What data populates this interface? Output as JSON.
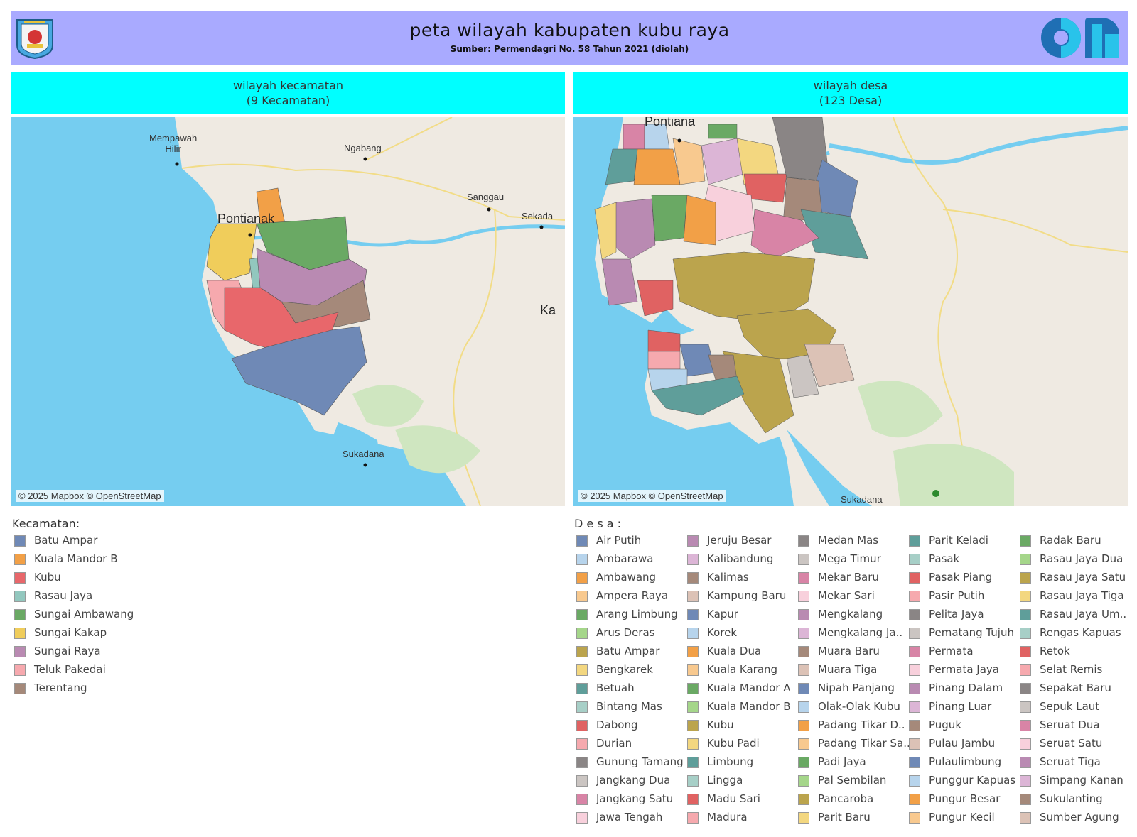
{
  "header": {
    "title": "peta wilayah kabupaten kubu raya",
    "subtitle": "Sumber: Permendagri No. 58 Tahun 2021 (diolah)"
  },
  "left_panel": {
    "title_line1": "wilayah kecamatan",
    "title_line2": "(9 Kecamatan)",
    "credit": "© 2025 Mapbox © OpenStreetMap",
    "places": [
      "Mempawah",
      "Hilir",
      "Ngabang",
      "Sanggau",
      "Sekada",
      "Pontianak",
      "Sukadana",
      "Ka"
    ]
  },
  "right_panel": {
    "title_line1": "wilayah desa",
    "title_line2": "(123 Desa)",
    "credit": "© 2025 Mapbox © OpenStreetMap",
    "places": [
      "Pontiana",
      "Sukadana"
    ]
  },
  "kecamatan_legend": {
    "title": "Kecamatan:",
    "items": [
      {
        "label": "Batu Ampar",
        "color": "#6f89b6"
      },
      {
        "label": "Kuala Mandor B",
        "color": "#f2a047"
      },
      {
        "label": "Kubu",
        "color": "#e8676b"
      },
      {
        "label": "Rasau Jaya",
        "color": "#92c7be"
      },
      {
        "label": "Sungai Ambawang",
        "color": "#6aa964"
      },
      {
        "label": "Sungai Kakap",
        "color": "#f0cd5b"
      },
      {
        "label": "Sungai Raya",
        "color": "#b98ab2"
      },
      {
        "label": "Teluk Pakedai",
        "color": "#f6a9ae"
      },
      {
        "label": "Terentang",
        "color": "#a5897a"
      }
    ]
  },
  "desa_legend": {
    "title": "D e s a :",
    "columns": [
      [
        {
          "label": "Air Putih",
          "color": "#6f89b6"
        },
        {
          "label": "Ambarawa",
          "color": "#b7d4ec"
        },
        {
          "label": "Ambawang",
          "color": "#f2a047"
        },
        {
          "label": "Ampera Raya",
          "color": "#f8c98f"
        },
        {
          "label": "Arang Limbung",
          "color": "#6aa964"
        },
        {
          "label": "Arus Deras",
          "color": "#a5d68a"
        },
        {
          "label": "Batu Ampar",
          "color": "#bba44d"
        },
        {
          "label": "Bengkarek",
          "color": "#f3d780"
        },
        {
          "label": "Betuah",
          "color": "#5f9e9a"
        },
        {
          "label": "Bintang Mas",
          "color": "#a7cfc7"
        },
        {
          "label": "Dabong",
          "color": "#e06262"
        },
        {
          "label": "Durian",
          "color": "#f6a9ae"
        },
        {
          "label": "Gunung Tamang",
          "color": "#8a8585"
        },
        {
          "label": "Jangkang Dua",
          "color": "#cbc5c2"
        },
        {
          "label": "Jangkang Satu",
          "color": "#d884a6"
        },
        {
          "label": "Jawa Tengah",
          "color": "#f8d0dc"
        }
      ],
      [
        {
          "label": "Jeruju Besar",
          "color": "#b98ab2"
        },
        {
          "label": "Kalibandung",
          "color": "#dcb5d6"
        },
        {
          "label": "Kalimas",
          "color": "#a5897a"
        },
        {
          "label": "Kampung Baru",
          "color": "#dcc2b6"
        },
        {
          "label": "Kapur",
          "color": "#6f89b6"
        },
        {
          "label": "Korek",
          "color": "#b7d4ec"
        },
        {
          "label": "Kuala Dua",
          "color": "#f2a047"
        },
        {
          "label": "Kuala Karang",
          "color": "#f8c98f"
        },
        {
          "label": "Kuala Mandor A",
          "color": "#6aa964"
        },
        {
          "label": "Kuala Mandor B",
          "color": "#a5d68a"
        },
        {
          "label": "Kubu",
          "color": "#bba44d"
        },
        {
          "label": "Kubu Padi",
          "color": "#f3d780"
        },
        {
          "label": "Limbung",
          "color": "#5f9e9a"
        },
        {
          "label": "Lingga",
          "color": "#a7cfc7"
        },
        {
          "label": "Madu Sari",
          "color": "#e06262"
        },
        {
          "label": "Madura",
          "color": "#f6a9ae"
        }
      ],
      [
        {
          "label": "Medan Mas",
          "color": "#8a8585"
        },
        {
          "label": "Mega Timur",
          "color": "#cbc5c2"
        },
        {
          "label": "Mekar Baru",
          "color": "#d884a6"
        },
        {
          "label": "Mekar Sari",
          "color": "#f8d0dc"
        },
        {
          "label": "Mengkalang",
          "color": "#b98ab2"
        },
        {
          "label": "Mengkalang Ja..",
          "color": "#dcb5d6"
        },
        {
          "label": "Muara Baru",
          "color": "#a5897a"
        },
        {
          "label": "Muara Tiga",
          "color": "#dcc2b6"
        },
        {
          "label": "Nipah Panjang",
          "color": "#6f89b6"
        },
        {
          "label": "Olak-Olak Kubu",
          "color": "#b7d4ec"
        },
        {
          "label": "Padang Tikar D..",
          "color": "#f2a047"
        },
        {
          "label": "Padang Tikar Sa..",
          "color": "#f8c98f"
        },
        {
          "label": "Padi Jaya",
          "color": "#6aa964"
        },
        {
          "label": "Pal Sembilan",
          "color": "#a5d68a"
        },
        {
          "label": "Pancaroba",
          "color": "#bba44d"
        },
        {
          "label": "Parit Baru",
          "color": "#f3d780"
        }
      ],
      [
        {
          "label": "Parit Keladi",
          "color": "#5f9e9a"
        },
        {
          "label": "Pasak",
          "color": "#a7cfc7"
        },
        {
          "label": "Pasak Piang",
          "color": "#e06262"
        },
        {
          "label": "Pasir Putih",
          "color": "#f6a9ae"
        },
        {
          "label": "Pelita Jaya",
          "color": "#8a8585"
        },
        {
          "label": "Pematang Tujuh",
          "color": "#cbc5c2"
        },
        {
          "label": "Permata",
          "color": "#d884a6"
        },
        {
          "label": "Permata Jaya",
          "color": "#f8d0dc"
        },
        {
          "label": "Pinang Dalam",
          "color": "#b98ab2"
        },
        {
          "label": "Pinang Luar",
          "color": "#dcb5d6"
        },
        {
          "label": "Puguk",
          "color": "#a5897a"
        },
        {
          "label": "Pulau Jambu",
          "color": "#dcc2b6"
        },
        {
          "label": "Pulaulimbung",
          "color": "#6f89b6"
        },
        {
          "label": "Punggur Kapuas",
          "color": "#b7d4ec"
        },
        {
          "label": "Pungur Besar",
          "color": "#f2a047"
        },
        {
          "label": "Pungur Kecil",
          "color": "#f8c98f"
        }
      ],
      [
        {
          "label": "Radak Baru",
          "color": "#6aa964"
        },
        {
          "label": "Rasau Jaya Dua",
          "color": "#a5d68a"
        },
        {
          "label": "Rasau Jaya Satu",
          "color": "#bba44d"
        },
        {
          "label": "Rasau Jaya Tiga",
          "color": "#f3d780"
        },
        {
          "label": "Rasau Jaya Um..",
          "color": "#5f9e9a"
        },
        {
          "label": "Rengas Kapuas",
          "color": "#a7cfc7"
        },
        {
          "label": "Retok",
          "color": "#e06262"
        },
        {
          "label": "Selat Remis",
          "color": "#f6a9ae"
        },
        {
          "label": "Sepakat Baru",
          "color": "#8a8585"
        },
        {
          "label": "Sepuk Laut",
          "color": "#cbc5c2"
        },
        {
          "label": "Seruat Dua",
          "color": "#d884a6"
        },
        {
          "label": "Seruat Satu",
          "color": "#f8d0dc"
        },
        {
          "label": "Seruat Tiga",
          "color": "#b98ab2"
        },
        {
          "label": "Simpang Kanan",
          "color": "#dcb5d6"
        },
        {
          "label": "Sukulanting",
          "color": "#a5897a"
        },
        {
          "label": "Sumber Agung",
          "color": "#dcc2b6"
        }
      ]
    ]
  }
}
